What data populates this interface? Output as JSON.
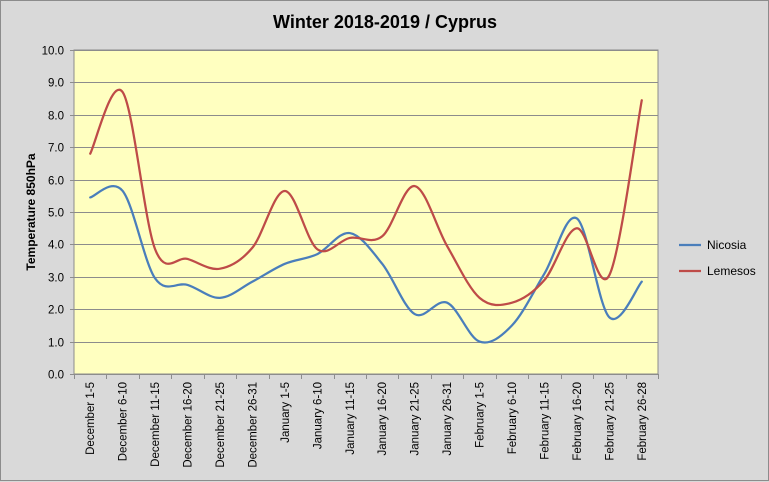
{
  "chart_data": {
    "type": "line",
    "title": "Winter 2018-2019 / Cyprus",
    "xlabel": "",
    "ylabel": "Temperature 850hPa",
    "ylim": [
      0,
      10
    ],
    "yticks": [
      "0.0",
      "1.0",
      "2.0",
      "3.0",
      "4.0",
      "5.0",
      "6.0",
      "7.0",
      "8.0",
      "9.0",
      "10.0"
    ],
    "grid": true,
    "legend_position": "right",
    "categories": [
      "December 1-5",
      "December 6-10",
      "December 11-15",
      "December 16-20",
      "December 21-25",
      "December 26-31",
      "January 1-5",
      "January 6-10",
      "January 11-15",
      "January 16-20",
      "January 21-25",
      "January 26-31",
      "February 1-5",
      "February 6-10",
      "February 11-15",
      "February 16-20",
      "February 21-25",
      "February 26-28"
    ],
    "series": [
      {
        "name": "Nicosia",
        "color": "#4a7ebb",
        "values": [
          5.45,
          5.65,
          2.95,
          2.75,
          2.35,
          2.85,
          3.4,
          3.7,
          4.35,
          3.4,
          1.85,
          2.2,
          1.0,
          1.5,
          3.1,
          4.8,
          1.75,
          2.85
        ]
      },
      {
        "name": "Lemesos",
        "color": "#be4b48",
        "values": [
          6.8,
          8.7,
          3.85,
          3.55,
          3.25,
          3.9,
          5.65,
          3.85,
          4.2,
          4.25,
          5.8,
          3.95,
          2.35,
          2.2,
          2.9,
          4.5,
          3.05,
          8.45
        ]
      }
    ]
  },
  "colors": {
    "plot_background": "#ffffc0",
    "page_background": "#d9d9d9",
    "gridline": "#8c8c8c"
  }
}
